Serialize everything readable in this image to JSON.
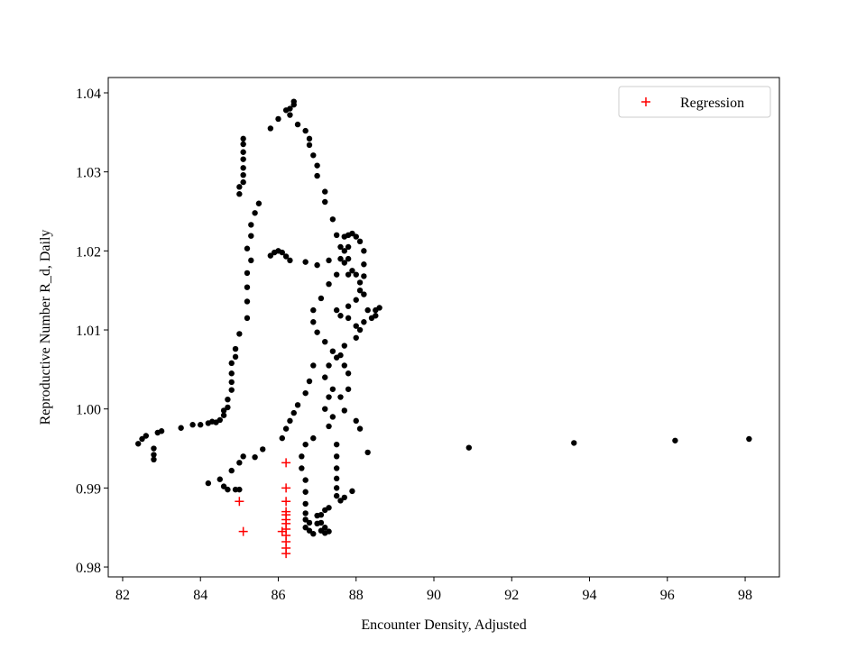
{
  "chart_data": {
    "type": "scatter",
    "xlabel": "Encounter Density, Adjusted",
    "ylabel": "Reproductive Number R_d, Daily",
    "xlim": [
      81.63,
      98.88
    ],
    "ylim": [
      0.97875,
      1.04194
    ],
    "xticks": [
      82,
      84,
      86,
      88,
      90,
      92,
      94,
      96,
      98
    ],
    "yticks": [
      0.98,
      0.99,
      {
        "value": 1,
        "label": "1.00"
      },
      1.01,
      1.02,
      1.03,
      1.04
    ],
    "legend": "upper right",
    "series": [
      {
        "color": "#000000",
        "marker": "dot",
        "x": [
          82.4,
          82.5,
          82.6,
          82.8,
          82.8,
          82.8,
          82.9,
          83.0,
          83.5,
          83.8,
          84.0,
          84.2,
          84.3,
          84.4,
          84.5,
          84.6,
          84.6,
          84.7,
          84.7,
          84.8,
          84.8,
          84.8,
          84.8,
          84.9,
          84.9,
          85.0,
          85.2,
          85.2,
          85.2,
          85.2,
          85.3,
          85.2,
          85.3,
          85.3,
          85.4,
          85.5,
          85.0,
          85.0,
          85.1,
          85.1,
          85.1,
          85.1,
          85.1,
          85.1,
          85.1,
          85.8,
          86.0,
          86.2,
          86.3,
          86.4,
          86.4,
          86.3,
          86.5,
          86.7,
          86.8,
          86.8,
          86.9,
          87.0,
          87.0,
          87.2,
          87.2,
          87.4,
          87.5,
          87.6,
          87.6,
          87.5,
          87.3,
          87.1,
          86.9,
          86.9,
          87.0,
          87.2,
          87.4,
          85.8,
          85.9,
          86.0,
          86.1,
          86.2,
          86.3,
          86.7,
          87.0,
          87.3,
          87.8,
          87.9,
          88.0,
          87.8,
          87.8,
          87.9,
          88.1,
          88.2,
          88.3,
          88.4,
          88.5,
          88.6,
          88.5,
          88.2,
          88.0,
          87.8,
          87.6,
          87.5,
          87.8,
          88.0,
          88.1,
          88.2,
          88.2,
          88.2,
          88.1,
          87.7,
          87.7,
          87.7,
          87.8,
          88.0,
          88.1,
          88.0,
          87.7,
          87.5,
          87.3,
          87.2,
          87.4,
          87.3,
          87.2,
          87.4,
          87.6,
          87.8,
          87.8,
          87.7,
          87.6,
          87.7,
          88.0,
          88.1,
          88.3,
          86.9,
          86.8,
          86.7,
          86.5,
          86.4,
          86.3,
          86.2,
          86.1,
          86.9,
          87.3,
          87.5,
          87.5,
          87.5,
          87.5,
          87.5,
          87.5,
          87.6,
          87.7,
          87.9,
          87.3,
          87.2,
          86.7,
          86.6,
          86.6,
          86.7,
          86.7,
          86.7,
          86.7,
          86.8,
          86.8,
          86.9,
          87.0,
          87.0,
          87.1,
          87.1,
          87.2,
          87.2,
          87.3,
          87.1,
          86.7,
          86.7,
          84.2,
          84.5,
          84.6,
          84.7,
          84.9,
          85.0,
          84.8,
          85.0,
          85.1,
          85.4,
          85.6,
          90.9,
          93.6,
          96.2,
          98.1
        ],
        "y": [
          0.9956,
          0.9962,
          0.9966,
          0.9936,
          0.9942,
          0.995,
          0.997,
          0.9972,
          0.9976,
          0.998,
          0.998,
          0.9982,
          0.9984,
          0.9983,
          0.9986,
          0.9992,
          0.9998,
          1.0002,
          1.0012,
          1.0024,
          1.0034,
          1.0045,
          1.0058,
          1.0066,
          1.0076,
          1.0095,
          1.0115,
          1.0136,
          1.0154,
          1.0172,
          1.0188,
          1.0203,
          1.0219,
          1.0233,
          1.0248,
          1.026,
          1.0272,
          1.0281,
          1.0287,
          1.0296,
          1.0305,
          1.0316,
          1.0325,
          1.0335,
          1.0342,
          1.0355,
          1.0367,
          1.0378,
          1.038,
          1.0385,
          1.0389,
          1.0372,
          1.036,
          1.0352,
          1.0342,
          1.0334,
          1.0321,
          1.0308,
          1.0295,
          1.0275,
          1.0262,
          1.024,
          1.022,
          1.0205,
          1.019,
          1.017,
          1.0158,
          1.014,
          1.0125,
          1.011,
          1.0097,
          1.0085,
          1.0073,
          1.0194,
          1.0198,
          1.02,
          1.0198,
          1.0193,
          1.0188,
          1.0186,
          1.0182,
          1.0188,
          1.022,
          1.0222,
          1.0218,
          1.0205,
          1.019,
          1.0175,
          1.016,
          1.0145,
          1.0125,
          1.0115,
          1.0125,
          1.0128,
          1.0118,
          1.011,
          1.0105,
          1.0115,
          1.0118,
          1.0125,
          1.013,
          1.0138,
          1.015,
          1.0168,
          1.0183,
          1.02,
          1.0212,
          1.0218,
          1.02,
          1.0185,
          1.017,
          1.017,
          1.01,
          1.009,
          1.008,
          1.0065,
          1.0055,
          1.004,
          1.0025,
          1.0015,
          1.0,
          0.999,
          1.0015,
          1.0025,
          1.0045,
          1.0055,
          1.0068,
          0.9998,
          0.9985,
          0.9975,
          0.9945,
          1.0055,
          1.0035,
          1.002,
          1.0005,
          0.9995,
          0.9985,
          0.9975,
          0.9963,
          0.9963,
          0.9978,
          0.9955,
          0.994,
          0.9925,
          0.9912,
          0.99,
          0.989,
          0.9884,
          0.9888,
          0.9896,
          0.9875,
          0.9872,
          0.9955,
          0.994,
          0.9925,
          0.991,
          0.9895,
          0.988,
          0.9868,
          0.9856,
          0.9846,
          0.9842,
          0.9855,
          0.9865,
          0.9866,
          0.9856,
          0.985,
          0.9843,
          0.9845,
          0.9846,
          0.985,
          0.986,
          0.9906,
          0.9911,
          0.9902,
          0.9898,
          0.9898,
          0.9898,
          0.9922,
          0.9932,
          0.994,
          0.9939,
          0.9949,
          0.9951,
          0.9957,
          0.996,
          0.9962
        ]
      },
      {
        "name": "Regression",
        "color": "#ff0000",
        "marker": "plus",
        "x": [
          85.0,
          85.1,
          86.2,
          86.2,
          86.2,
          86.2,
          86.2,
          86.2,
          86.2,
          86.2,
          86.1,
          86.2,
          86.2,
          86.2,
          86.2
        ],
        "y": [
          0.9883,
          0.9845,
          0.9932,
          0.99,
          0.9883,
          0.987,
          0.9866,
          0.986,
          0.9855,
          0.9848,
          0.9845,
          0.984,
          0.9832,
          0.9824,
          0.9817
        ]
      }
    ]
  }
}
